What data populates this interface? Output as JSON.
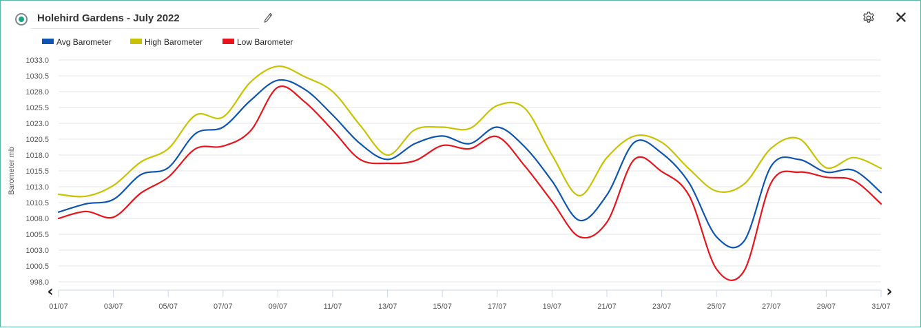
{
  "header": {
    "title": "Holehird Gardens - July 2022",
    "status_icon": "status-radio-icon",
    "edit_icon": "pencil-icon",
    "settings_icon": "gear-icon",
    "close_icon": "close-icon"
  },
  "nav": {
    "prev_icon": "chevron-left-icon",
    "next_icon": "chevron-right-icon",
    "prev_label": "‹",
    "next_label": "›"
  },
  "chart_data": {
    "type": "line",
    "title": "",
    "xlabel": "",
    "ylabel": "Barometer mb",
    "ylim": [
      998.0,
      1033.0
    ],
    "grid": true,
    "legend_position": "top-left",
    "y_ticks": [
      "1033.0",
      "1030.5",
      "1028.0",
      "1025.5",
      "1023.0",
      "1020.5",
      "1018.0",
      "1015.5",
      "1013.0",
      "1010.5",
      "1008.0",
      "1005.5",
      "1003.0",
      "1000.5",
      "998.0"
    ],
    "x_ticks": [
      "01/07",
      "03/07",
      "05/07",
      "07/07",
      "09/07",
      "11/07",
      "13/07",
      "15/07",
      "17/07",
      "19/07",
      "21/07",
      "23/07",
      "25/07",
      "27/07",
      "29/07",
      "31/07"
    ],
    "x": [
      "01/07",
      "02/07",
      "03/07",
      "04/07",
      "05/07",
      "06/07",
      "07/07",
      "08/07",
      "09/07",
      "10/07",
      "11/07",
      "12/07",
      "13/07",
      "14/07",
      "15/07",
      "16/07",
      "17/07",
      "18/07",
      "19/07",
      "20/07",
      "21/07",
      "22/07",
      "23/07",
      "24/07",
      "25/07",
      "26/07",
      "27/07",
      "28/07",
      "29/07",
      "30/07",
      "31/07"
    ],
    "series": [
      {
        "name": "Avg Barometer",
        "color": "#0d55b0",
        "values": [
          1009.0,
          1010.3,
          1011.0,
          1014.9,
          1016.0,
          1021.4,
          1022.4,
          1026.6,
          1029.8,
          1028.3,
          1024.3,
          1019.8,
          1017.3,
          1019.8,
          1021.0,
          1019.8,
          1022.4,
          1019.3,
          1013.9,
          1007.7,
          1011.7,
          1020.0,
          1018.3,
          1013.6,
          1005.1,
          1004.4,
          1016.3,
          1017.3,
          1015.3,
          1015.6,
          1012.1
        ]
      },
      {
        "name": "High Barometer",
        "color": "#c8c200",
        "values": [
          1011.8,
          1011.5,
          1013.2,
          1016.9,
          1019.0,
          1024.3,
          1024.0,
          1029.5,
          1032.0,
          1030.3,
          1028.0,
          1022.7,
          1018.0,
          1022.0,
          1022.4,
          1022.2,
          1025.8,
          1025.4,
          1018.0,
          1011.6,
          1017.6,
          1021.0,
          1020.0,
          1015.8,
          1012.3,
          1013.4,
          1019.1,
          1020.6,
          1016.0,
          1017.6,
          1015.9
        ]
      },
      {
        "name": "Low Barometer",
        "color": "#e8141b",
        "values": [
          1008.0,
          1009.1,
          1008.2,
          1012.0,
          1014.5,
          1019.0,
          1019.4,
          1021.8,
          1028.7,
          1026.3,
          1021.9,
          1017.3,
          1016.7,
          1017.1,
          1019.5,
          1019.0,
          1020.9,
          1016.3,
          1010.7,
          1005.1,
          1007.4,
          1017.3,
          1015.4,
          1011.6,
          1000.0,
          999.7,
          1013.7,
          1015.3,
          1014.5,
          1014.0,
          1010.3
        ]
      }
    ]
  }
}
